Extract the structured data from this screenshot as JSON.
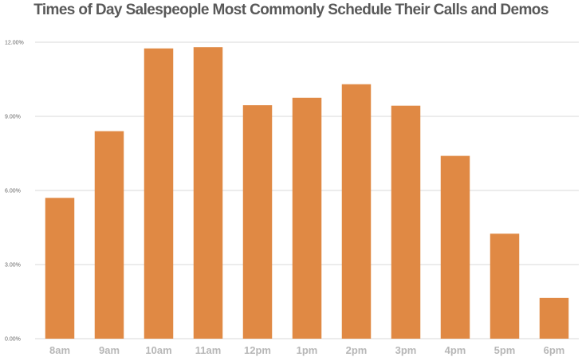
{
  "chart_data": {
    "type": "bar",
    "title": "Times of Day Salespeople Most Commonly Schedule Their Calls and Demos",
    "xlabel": "",
    "ylabel": "",
    "categories": [
      "8am",
      "9am",
      "10am",
      "11am",
      "12pm",
      "1pm",
      "2pm",
      "3pm",
      "4pm",
      "5pm",
      "6pm"
    ],
    "values": [
      5.7,
      8.4,
      11.75,
      11.8,
      9.45,
      9.75,
      10.3,
      9.43,
      7.4,
      4.25,
      1.65
    ],
    "ylim": [
      0,
      12
    ],
    "yticks": [
      0,
      3,
      6,
      9,
      12
    ],
    "ytick_labels": [
      "0.00%",
      "3.00%",
      "6.00%",
      "9.00%",
      "12.00%"
    ],
    "grid": true,
    "legend": "none",
    "bar_color": "#e08944",
    "grid_color": "#d9d9d9"
  }
}
